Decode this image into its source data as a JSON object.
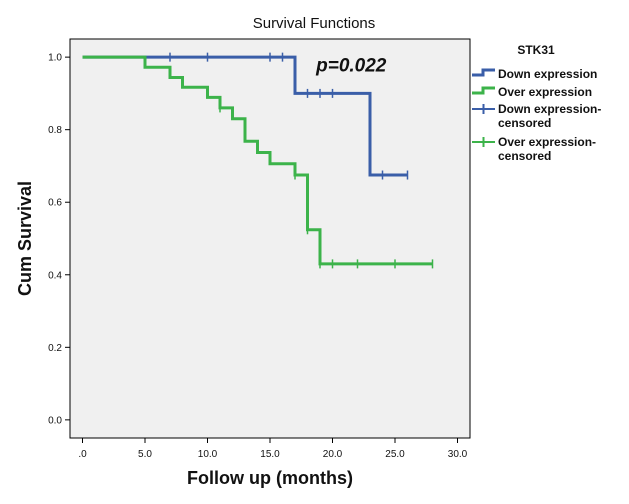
{
  "chart_data": {
    "type": "line",
    "title": "Survival Functions",
    "xlabel": "Follow up (months)",
    "ylabel": "Cum Survival",
    "xlim": [
      -1,
      31
    ],
    "ylim": [
      -0.05,
      1.05
    ],
    "x_ticks": [
      0,
      5,
      10,
      15,
      20,
      25,
      30
    ],
    "x_tick_labels": [
      ".0",
      "5.0",
      "10.0",
      "15.0",
      "20.0",
      "25.0",
      "30.0"
    ],
    "y_ticks": [
      0,
      0.2,
      0.4,
      0.6,
      0.8,
      1.0
    ],
    "y_tick_labels": [
      "0.0",
      "0.2",
      "0.4",
      "0.6",
      "0.8",
      "1.0"
    ],
    "grid": false,
    "plot_background": "#f0f0f0",
    "annotation": "p=0.022",
    "legend": {
      "title": "STK31",
      "placement": "right",
      "entries": [
        {
          "label": "Down expression",
          "kind": "step",
          "series": 0
        },
        {
          "label": "Over expression",
          "kind": "step",
          "series": 1
        },
        {
          "label_lines": [
            "Down expression-",
            "censored"
          ],
          "kind": "censor",
          "series": 0
        },
        {
          "label_lines": [
            "Over expression-",
            "censored"
          ],
          "kind": "censor",
          "series": 1
        }
      ]
    },
    "series": [
      {
        "name": "Down expression",
        "color": "#3a5ea8",
        "steps": [
          {
            "x": 0,
            "y": 1.0
          },
          {
            "x": 17,
            "y": 0.9
          },
          {
            "x": 23,
            "y": 0.675
          }
        ],
        "end_x": 26,
        "censored": [
          {
            "x": 7,
            "y": 1.0
          },
          {
            "x": 10,
            "y": 1.0
          },
          {
            "x": 15,
            "y": 1.0
          },
          {
            "x": 16,
            "y": 1.0
          },
          {
            "x": 18,
            "y": 0.9
          },
          {
            "x": 19,
            "y": 0.9
          },
          {
            "x": 20,
            "y": 0.9
          },
          {
            "x": 24,
            "y": 0.675
          },
          {
            "x": 26,
            "y": 0.675
          }
        ]
      },
      {
        "name": "Over expression",
        "color": "#3cb34a",
        "steps": [
          {
            "x": 0,
            "y": 1.0
          },
          {
            "x": 5,
            "y": 0.972
          },
          {
            "x": 7,
            "y": 0.944
          },
          {
            "x": 8,
            "y": 0.917
          },
          {
            "x": 10,
            "y": 0.889
          },
          {
            "x": 11,
            "y": 0.86
          },
          {
            "x": 12,
            "y": 0.83
          },
          {
            "x": 13,
            "y": 0.768
          },
          {
            "x": 14,
            "y": 0.737
          },
          {
            "x": 15,
            "y": 0.706
          },
          {
            "x": 17,
            "y": 0.675
          },
          {
            "x": 18,
            "y": 0.524
          },
          {
            "x": 19,
            "y": 0.43
          }
        ],
        "end_x": 28,
        "censored": [
          {
            "x": 11,
            "y": 0.86
          },
          {
            "x": 17,
            "y": 0.675
          },
          {
            "x": 18,
            "y": 0.524
          },
          {
            "x": 19,
            "y": 0.43
          },
          {
            "x": 20,
            "y": 0.43
          },
          {
            "x": 22,
            "y": 0.43
          },
          {
            "x": 25,
            "y": 0.43
          },
          {
            "x": 28,
            "y": 0.43
          }
        ]
      }
    ]
  }
}
